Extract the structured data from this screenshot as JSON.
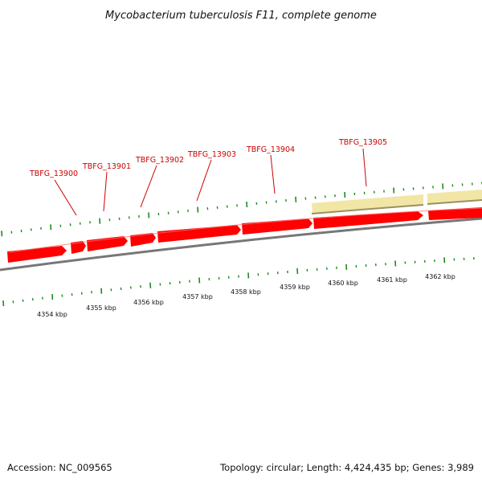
{
  "title": "Mycobacterium tuberculosis F11, complete genome",
  "footer": {
    "accession": "Accession: NC_009565",
    "summary": "Topology: circular; Length: 4,424,435 bp; Genes: 3,989"
  },
  "colors": {
    "background": "#ffffff",
    "gene_forward": "#ff0000",
    "gene_highlight": "#f2e6a6",
    "backbone": "#777777",
    "tick": "#1e8a1e",
    "label_text": "#cc0000",
    "leader": "#cc0000"
  },
  "gene_labels": [
    "TBFG_13900",
    "TBFG_13901",
    "TBFG_13902",
    "TBFG_13903",
    "TBFG_13904",
    "TBFG_13905"
  ],
  "kbp_labels": [
    "4354 kbp",
    "4355 kbp",
    "4356 kbp",
    "4357 kbp",
    "4358 kbp",
    "4359 kbp",
    "4360 kbp",
    "4361 kbp",
    "4362 kbp"
  ]
}
